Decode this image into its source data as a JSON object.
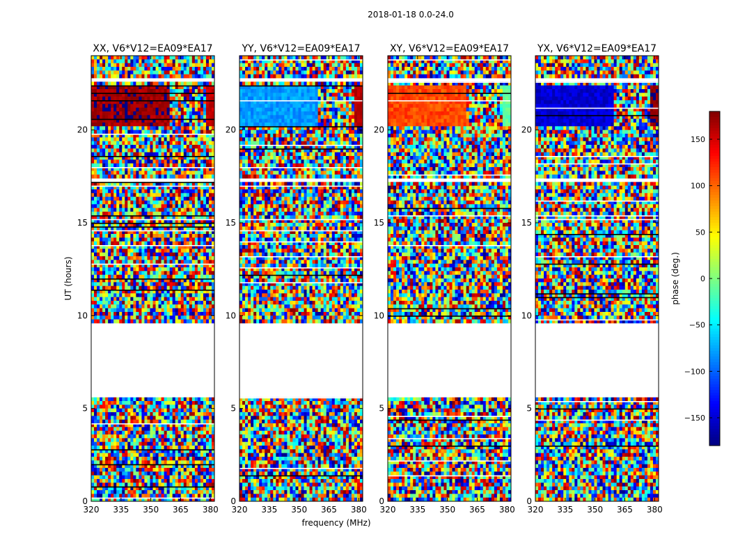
{
  "chart_data": {
    "type": "heatmap",
    "suptitle": "2018-01-18 0.0-24.0",
    "xlabel": "frequency (MHz)",
    "ylabel": "UT (hours)",
    "xlim": [
      320,
      382
    ],
    "ylim": [
      0,
      24
    ],
    "xticks": [
      "320",
      "335",
      "350",
      "365",
      "380"
    ],
    "yticks": [
      "0",
      "5",
      "10",
      "15",
      "20"
    ],
    "panels": [
      {
        "title": "XX, V6*V12=EA09*EA17",
        "coherent_phase_low_freq": 170,
        "coherent_phase_high_freq": 155
      },
      {
        "title": "YY, V6*V12=EA09*EA17",
        "coherent_phase_low_freq": -80,
        "coherent_phase_high_freq": 160
      },
      {
        "title": "XY, V6*V12=EA09*EA17",
        "coherent_phase_low_freq": 110,
        "coherent_phase_high_freq": -10
      },
      {
        "title": "YX, V6*V12=EA09*EA17",
        "coherent_phase_low_freq": -150,
        "coherent_phase_high_freq": 175
      }
    ],
    "blank_ut_ranges": [
      [
        5.6,
        9.6
      ],
      [
        17.2,
        17.4
      ],
      [
        22.7,
        22.8
      ]
    ],
    "coherent_ut_range": [
      20.2,
      22.4
    ],
    "colorbar": {
      "label": "phase (deg.)",
      "range": [
        -180,
        180
      ],
      "ticks": [
        "150",
        "100",
        "50",
        "0",
        "−50",
        "−100",
        "−150"
      ],
      "tick_values": [
        150,
        100,
        50,
        0,
        -50,
        -100,
        -150
      ],
      "colormap": "jet"
    }
  }
}
